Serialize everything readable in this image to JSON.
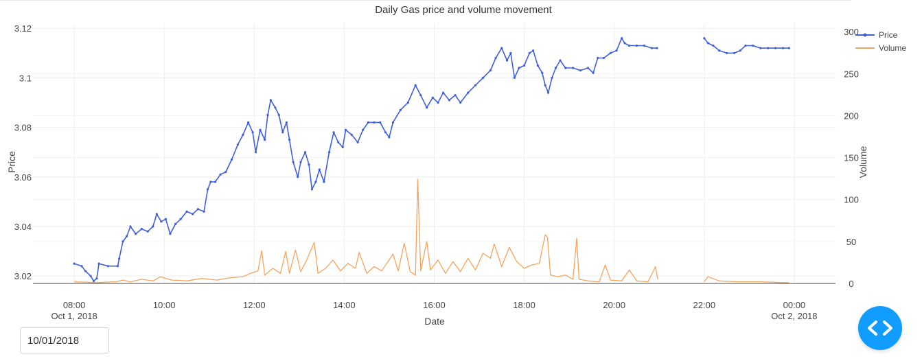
{
  "date_picker": {
    "value": "10/01/2018"
  },
  "colors": {
    "price": "#3f5ed9",
    "volume": "#f5a35c",
    "grid": "#eeeeee",
    "fab": "#119dff"
  },
  "icons": {
    "fab": "code-brackets-icon"
  },
  "chart_data": {
    "type": "line",
    "title": "Daily Gas price and volume movement",
    "xlabel": "Date",
    "ylabel": "Price",
    "y2label": "Volume",
    "xlim": [
      "2018-10-01 07:05",
      "2018-10-02 00:55"
    ],
    "ylim": [
      3.017,
      3.122
    ],
    "y2lim": [
      0,
      310
    ],
    "grid": true,
    "legend_position": "top-right",
    "x_ticks": [
      {
        "at": "2018-10-01 08:00",
        "line1": "08:00",
        "line2": "Oct 1, 2018"
      },
      {
        "at": "2018-10-01 10:00",
        "line1": "10:00",
        "line2": ""
      },
      {
        "at": "2018-10-01 12:00",
        "line1": "12:00",
        "line2": ""
      },
      {
        "at": "2018-10-01 14:00",
        "line1": "14:00",
        "line2": ""
      },
      {
        "at": "2018-10-01 16:00",
        "line1": "16:00",
        "line2": ""
      },
      {
        "at": "2018-10-01 18:00",
        "line1": "18:00",
        "line2": ""
      },
      {
        "at": "2018-10-01 20:00",
        "line1": "20:00",
        "line2": ""
      },
      {
        "at": "2018-10-01 22:00",
        "line1": "22:00",
        "line2": ""
      },
      {
        "at": "2018-10-02 00:00",
        "line1": "00:00",
        "line2": "Oct 2, 2018"
      }
    ],
    "y_ticks": [
      {
        "value": 3.02,
        "label": "3.02"
      },
      {
        "value": 3.04,
        "label": "3.04"
      },
      {
        "value": 3.06,
        "label": "3.06"
      },
      {
        "value": 3.08,
        "label": "3.08"
      },
      {
        "value": 3.1,
        "label": "3.1"
      },
      {
        "value": 3.12,
        "label": "3.12"
      }
    ],
    "y2_ticks": [
      {
        "value": 0,
        "label": "0"
      },
      {
        "value": 50,
        "label": "50"
      },
      {
        "value": 100,
        "label": "100"
      },
      {
        "value": 150,
        "label": "150"
      },
      {
        "value": 200,
        "label": "200"
      },
      {
        "value": 250,
        "label": "250"
      },
      {
        "value": 300,
        "label": "300"
      }
    ],
    "series": [
      {
        "name": "Price",
        "axis": "y",
        "mode": "lines+markers",
        "points": [
          [
            "2018-10-01 08:00",
            3.025
          ],
          [
            "2018-10-01 08:10",
            3.024
          ],
          [
            "2018-10-01 08:15",
            3.022
          ],
          [
            "2018-10-01 08:22",
            3.02
          ],
          [
            "2018-10-01 08:26",
            3.018
          ],
          [
            "2018-10-01 08:30",
            3.019
          ],
          [
            "2018-10-01 08:33",
            3.025
          ],
          [
            "2018-10-01 08:45",
            3.024
          ],
          [
            "2018-10-01 08:58",
            3.024
          ],
          [
            "2018-10-01 09:00",
            3.027
          ],
          [
            "2018-10-01 09:05",
            3.034
          ],
          [
            "2018-10-01 09:10",
            3.036
          ],
          [
            "2018-10-01 09:15",
            3.04
          ],
          [
            "2018-10-01 09:22",
            3.037
          ],
          [
            "2018-10-01 09:30",
            3.039
          ],
          [
            "2018-10-01 09:38",
            3.038
          ],
          [
            "2018-10-01 09:45",
            3.04
          ],
          [
            "2018-10-01 09:50",
            3.045
          ],
          [
            "2018-10-01 09:56",
            3.042
          ],
          [
            "2018-10-01 10:02",
            3.043
          ],
          [
            "2018-10-01 10:08",
            3.037
          ],
          [
            "2018-10-01 10:15",
            3.041
          ],
          [
            "2018-10-01 10:22",
            3.043
          ],
          [
            "2018-10-01 10:30",
            3.046
          ],
          [
            "2018-10-01 10:38",
            3.045
          ],
          [
            "2018-10-01 10:45",
            3.047
          ],
          [
            "2018-10-01 10:53",
            3.046
          ],
          [
            "2018-10-01 10:58",
            3.055
          ],
          [
            "2018-10-01 11:02",
            3.058
          ],
          [
            "2018-10-01 11:08",
            3.058
          ],
          [
            "2018-10-01 11:15",
            3.061
          ],
          [
            "2018-10-01 11:22",
            3.062
          ],
          [
            "2018-10-01 11:30",
            3.067
          ],
          [
            "2018-10-01 11:38",
            3.073
          ],
          [
            "2018-10-01 11:45",
            3.077
          ],
          [
            "2018-10-01 11:52",
            3.082
          ],
          [
            "2018-10-01 11:58",
            3.078
          ],
          [
            "2018-10-01 12:02",
            3.07
          ],
          [
            "2018-10-01 12:08",
            3.079
          ],
          [
            "2018-10-01 12:14",
            3.075
          ],
          [
            "2018-10-01 12:18",
            3.085
          ],
          [
            "2018-10-01 12:22",
            3.091
          ],
          [
            "2018-10-01 12:28",
            3.088
          ],
          [
            "2018-10-01 12:33",
            3.085
          ],
          [
            "2018-10-01 12:38",
            3.078
          ],
          [
            "2018-10-01 12:43",
            3.082
          ],
          [
            "2018-10-01 12:47",
            3.075
          ],
          [
            "2018-10-01 12:52",
            3.066
          ],
          [
            "2018-10-01 12:58",
            3.06
          ],
          [
            "2018-10-01 13:02",
            3.066
          ],
          [
            "2018-10-01 13:08",
            3.07
          ],
          [
            "2018-10-01 13:13",
            3.065
          ],
          [
            "2018-10-01 13:17",
            3.055
          ],
          [
            "2018-10-01 13:22",
            3.058
          ],
          [
            "2018-10-01 13:27",
            3.063
          ],
          [
            "2018-10-01 13:33",
            3.058
          ],
          [
            "2018-10-01 13:40",
            3.07
          ],
          [
            "2018-10-01 13:46",
            3.078
          ],
          [
            "2018-10-01 13:52",
            3.074
          ],
          [
            "2018-10-01 13:58",
            3.072
          ],
          [
            "2018-10-01 14:02",
            3.079
          ],
          [
            "2018-10-01 14:10",
            3.077
          ],
          [
            "2018-10-01 14:18",
            3.074
          ],
          [
            "2018-10-01 14:25",
            3.079
          ],
          [
            "2018-10-01 14:32",
            3.082
          ],
          [
            "2018-10-01 14:40",
            3.082
          ],
          [
            "2018-10-01 14:48",
            3.082
          ],
          [
            "2018-10-01 14:55",
            3.078
          ],
          [
            "2018-10-01 15:00",
            3.076
          ],
          [
            "2018-10-01 15:05",
            3.082
          ],
          [
            "2018-10-01 15:15",
            3.087
          ],
          [
            "2018-10-01 15:25",
            3.09
          ],
          [
            "2018-10-01 15:35",
            3.097
          ],
          [
            "2018-10-01 15:42",
            3.093
          ],
          [
            "2018-10-01 15:50",
            3.088
          ],
          [
            "2018-10-01 15:58",
            3.092
          ],
          [
            "2018-10-01 16:05",
            3.09
          ],
          [
            "2018-10-01 16:12",
            3.094
          ],
          [
            "2018-10-01 16:20",
            3.091
          ],
          [
            "2018-10-01 16:28",
            3.093
          ],
          [
            "2018-10-01 16:35",
            3.09
          ],
          [
            "2018-10-01 16:45",
            3.094
          ],
          [
            "2018-10-01 16:55",
            3.097
          ],
          [
            "2018-10-01 17:05",
            3.1
          ],
          [
            "2018-10-01 17:15",
            3.103
          ],
          [
            "2018-10-01 17:22",
            3.108
          ],
          [
            "2018-10-01 17:30",
            3.112
          ],
          [
            "2018-10-01 17:37",
            3.107
          ],
          [
            "2018-10-01 17:42",
            3.11
          ],
          [
            "2018-10-01 17:47",
            3.1
          ],
          [
            "2018-10-01 17:53",
            3.104
          ],
          [
            "2018-10-01 18:00",
            3.105
          ],
          [
            "2018-10-01 18:07",
            3.11
          ],
          [
            "2018-10-01 18:12",
            3.111
          ],
          [
            "2018-10-01 18:18",
            3.105
          ],
          [
            "2018-10-01 18:24",
            3.102
          ],
          [
            "2018-10-01 18:28",
            3.097
          ],
          [
            "2018-10-01 18:32",
            3.094
          ],
          [
            "2018-10-01 18:37",
            3.1
          ],
          [
            "2018-10-01 18:42",
            3.104
          ],
          [
            "2018-10-01 18:48",
            3.107
          ],
          [
            "2018-10-01 18:55",
            3.104
          ],
          [
            "2018-10-01 19:05",
            3.104
          ],
          [
            "2018-10-01 19:15",
            3.103
          ],
          [
            "2018-10-01 19:25",
            3.104
          ],
          [
            "2018-10-01 19:32",
            3.102
          ],
          [
            "2018-10-01 19:38",
            3.108
          ],
          [
            "2018-10-01 19:46",
            3.108
          ],
          [
            "2018-10-01 19:55",
            3.11
          ],
          [
            "2018-10-01 20:03",
            3.111
          ],
          [
            "2018-10-01 20:10",
            3.116
          ],
          [
            "2018-10-01 20:14",
            3.114
          ],
          [
            "2018-10-01 20:20",
            3.113
          ],
          [
            "2018-10-01 20:30",
            3.113
          ],
          [
            "2018-10-01 20:40",
            3.113
          ],
          [
            "2018-10-01 20:50",
            3.112
          ],
          [
            "2018-10-01 20:57",
            3.112
          ],
          null,
          [
            "2018-10-01 22:00",
            3.116
          ],
          [
            "2018-10-01 22:05",
            3.114
          ],
          [
            "2018-10-01 22:12",
            3.113
          ],
          [
            "2018-10-01 22:20",
            3.111
          ],
          [
            "2018-10-01 22:30",
            3.11
          ],
          [
            "2018-10-01 22:40",
            3.11
          ],
          [
            "2018-10-01 22:48",
            3.111
          ],
          [
            "2018-10-01 22:55",
            3.113
          ],
          [
            "2018-10-01 23:05",
            3.113
          ],
          [
            "2018-10-01 23:15",
            3.112
          ],
          [
            "2018-10-01 23:25",
            3.112
          ],
          [
            "2018-10-01 23:35",
            3.112
          ],
          [
            "2018-10-01 23:45",
            3.112
          ],
          [
            "2018-10-01 23:53",
            3.112
          ]
        ]
      },
      {
        "name": "Volume",
        "axis": "y2",
        "mode": "lines",
        "points": [
          [
            "2018-10-01 08:00",
            2
          ],
          [
            "2018-10-01 08:30",
            1
          ],
          [
            "2018-10-01 08:55",
            2
          ],
          [
            "2018-10-01 09:05",
            4
          ],
          [
            "2018-10-01 09:15",
            2
          ],
          [
            "2018-10-01 09:30",
            5
          ],
          [
            "2018-10-01 09:45",
            3
          ],
          [
            "2018-10-01 09:55",
            8
          ],
          [
            "2018-10-01 10:10",
            4
          ],
          [
            "2018-10-01 10:30",
            3
          ],
          [
            "2018-10-01 10:50",
            6
          ],
          [
            "2018-10-01 11:10",
            4
          ],
          [
            "2018-10-01 11:30",
            7
          ],
          [
            "2018-10-01 11:45",
            8
          ],
          [
            "2018-10-01 11:55",
            12
          ],
          [
            "2018-10-01 12:05",
            15
          ],
          [
            "2018-10-01 12:10",
            39
          ],
          [
            "2018-10-01 12:14",
            10
          ],
          [
            "2018-10-01 12:25",
            18
          ],
          [
            "2018-10-01 12:35",
            12
          ],
          [
            "2018-10-01 12:42",
            38
          ],
          [
            "2018-10-01 12:47",
            12
          ],
          [
            "2018-10-01 12:55",
            40
          ],
          [
            "2018-10-01 13:02",
            14
          ],
          [
            "2018-10-01 13:10",
            28
          ],
          [
            "2018-10-01 13:20",
            49
          ],
          [
            "2018-10-01 13:25",
            12
          ],
          [
            "2018-10-01 13:35",
            18
          ],
          [
            "2018-10-01 13:45",
            28
          ],
          [
            "2018-10-01 13:55",
            15
          ],
          [
            "2018-10-01 14:05",
            24
          ],
          [
            "2018-10-01 14:15",
            18
          ],
          [
            "2018-10-01 14:20",
            37
          ],
          [
            "2018-10-01 14:30",
            12
          ],
          [
            "2018-10-01 14:40",
            20
          ],
          [
            "2018-10-01 14:50",
            15
          ],
          [
            "2018-10-01 15:05",
            35
          ],
          [
            "2018-10-01 15:12",
            15
          ],
          [
            "2018-10-01 15:20",
            48
          ],
          [
            "2018-10-01 15:28",
            14
          ],
          [
            "2018-10-01 15:35",
            10
          ],
          [
            "2018-10-01 15:38",
            124
          ],
          [
            "2018-10-01 15:42",
            15
          ],
          [
            "2018-10-01 15:50",
            50
          ],
          [
            "2018-10-01 15:55",
            16
          ],
          [
            "2018-10-01 16:05",
            28
          ],
          [
            "2018-10-01 16:15",
            12
          ],
          [
            "2018-10-01 16:25",
            26
          ],
          [
            "2018-10-01 16:35",
            14
          ],
          [
            "2018-10-01 16:45",
            30
          ],
          [
            "2018-10-01 16:55",
            16
          ],
          [
            "2018-10-01 17:05",
            36
          ],
          [
            "2018-10-01 17:15",
            30
          ],
          [
            "2018-10-01 17:20",
            47
          ],
          [
            "2018-10-01 17:30",
            20
          ],
          [
            "2018-10-01 17:40",
            43
          ],
          [
            "2018-10-01 17:50",
            26
          ],
          [
            "2018-10-01 18:00",
            18
          ],
          [
            "2018-10-01 18:10",
            22
          ],
          [
            "2018-10-01 18:20",
            24
          ],
          [
            "2018-10-01 18:28",
            58
          ],
          [
            "2018-10-01 18:31",
            55
          ],
          [
            "2018-10-01 18:35",
            10
          ],
          [
            "2018-10-01 18:45",
            8
          ],
          [
            "2018-10-01 18:55",
            10
          ],
          [
            "2018-10-01 19:05",
            5
          ],
          [
            "2018-10-01 19:10",
            54
          ],
          [
            "2018-10-01 19:13",
            5
          ],
          [
            "2018-10-01 19:25",
            3
          ],
          [
            "2018-10-01 19:40",
            2
          ],
          [
            "2018-10-01 19:48",
            22
          ],
          [
            "2018-10-01 19:55",
            4
          ],
          [
            "2018-10-01 20:10",
            3
          ],
          [
            "2018-10-01 20:20",
            16
          ],
          [
            "2018-10-01 20:30",
            3
          ],
          [
            "2018-10-01 20:45",
            2
          ],
          [
            "2018-10-01 20:55",
            20
          ],
          [
            "2018-10-01 20:58",
            5
          ],
          null,
          [
            "2018-10-01 22:00",
            2
          ],
          [
            "2018-10-01 22:05",
            8
          ],
          [
            "2018-10-01 22:20",
            3
          ],
          [
            "2018-10-01 22:45",
            2
          ],
          [
            "2018-10-01 23:15",
            2
          ],
          [
            "2018-10-01 23:45",
            1
          ],
          [
            "2018-10-01 23:53",
            1
          ]
        ]
      }
    ]
  }
}
